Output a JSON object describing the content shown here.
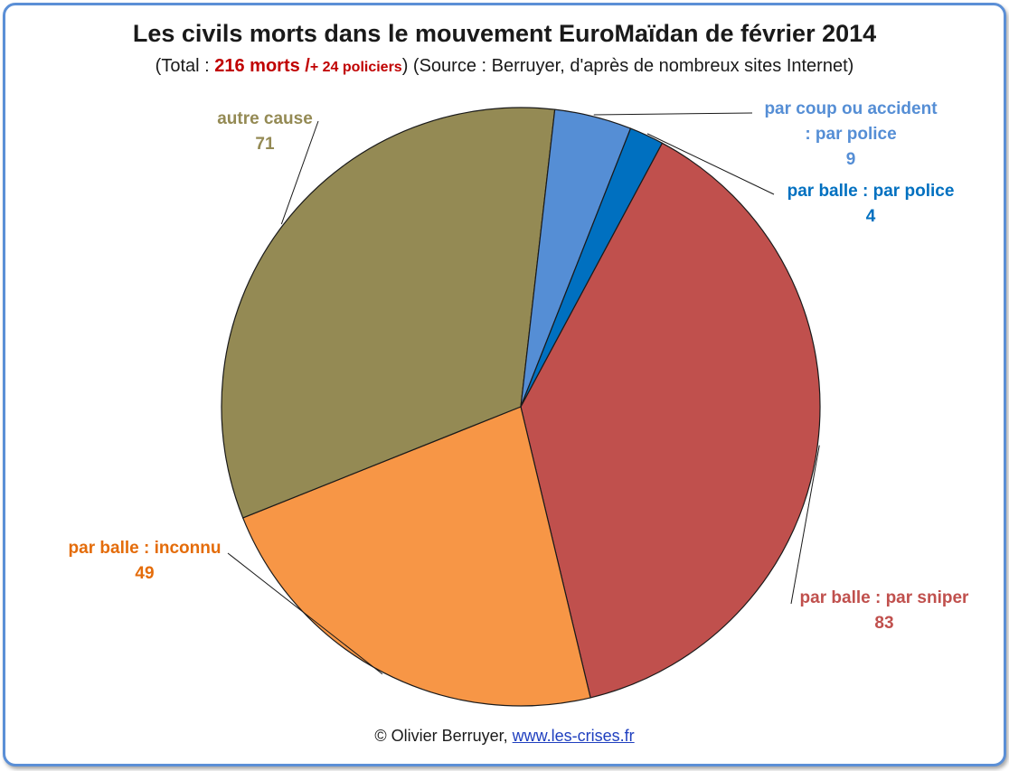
{
  "header": {
    "title": "Les civils morts dans le mouvement EuroMaïdan de février 2014",
    "subtitle_open": "(Total : ",
    "subtitle_total": "216 morts /",
    "subtitle_police": "+ 24 policiers",
    "subtitle_close": ")  (Source : Berruyer, d'après de nombreux sites Internet)"
  },
  "chart_data": {
    "type": "pie",
    "title": "Les civils morts dans le mouvement EuroMaïdan de février 2014",
    "slices": [
      {
        "label": "par balle : par sniper",
        "label_lines": [
          "par balle : par sniper"
        ],
        "value": 83,
        "color": "#c0504d",
        "label_color": "#c0504d"
      },
      {
        "label": "par balle : inconnu",
        "label_lines": [
          "par balle : inconnu"
        ],
        "value": 49,
        "color": "#f79646",
        "label_color": "#e46c0a"
      },
      {
        "label": "autre cause",
        "label_lines": [
          "autre cause"
        ],
        "value": 71,
        "color": "#948a54",
        "label_color": "#948a54"
      },
      {
        "label": "par coup ou accident : par police",
        "label_lines": [
          "par coup ou accident",
          ": par police"
        ],
        "value": 9,
        "color": "#558ed5",
        "label_color": "#558ed5"
      },
      {
        "label": "par balle : par police",
        "label_lines": [
          "par balle : par police"
        ],
        "value": 4,
        "color": "#0070c0",
        "label_color": "#0070c0"
      }
    ]
  },
  "footer": {
    "copyright": "© Olivier Berruyer, ",
    "link": "www.les-crises.fr"
  }
}
